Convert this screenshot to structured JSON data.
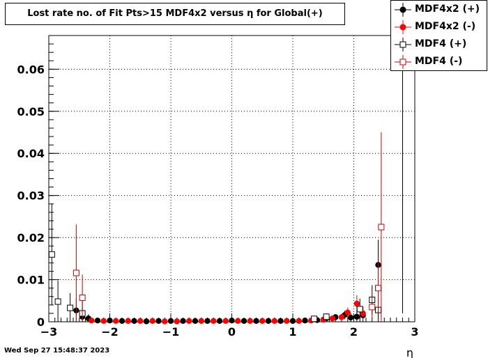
{
  "footer": {
    "timestamp": "Wed Sep 27 15:48:37 2023"
  },
  "chart_data": {
    "type": "scatter",
    "title": "Lost rate no. of Fit Pts>15 MDF4x2 versus η for Global(+)",
    "xlabel": "η",
    "ylabel": "",
    "xlim": [
      -3,
      3
    ],
    "ylim": [
      0,
      0.068
    ],
    "x_ticks": [
      "−3",
      "−2",
      "−1",
      "0",
      "1",
      "2",
      "3"
    ],
    "y_ticks": [
      "0",
      "0.01",
      "0.02",
      "0.03",
      "0.04",
      "0.05",
      "0.06"
    ],
    "grid": true,
    "legend_position": "top-right",
    "series": [
      {
        "name": "MDF4x2 (+)",
        "marker": "filled-circle",
        "color": "#000000",
        "points": [
          {
            "x": -2.55,
            "y": 0.0027,
            "err": 0.003
          },
          {
            "x": -2.45,
            "y": 0.0012,
            "err": 0.002
          },
          {
            "x": -2.35,
            "y": 0.0008,
            "err": 0.001
          },
          {
            "x": -2.2,
            "y": 0.0003,
            "err": 0.0004
          },
          {
            "x": -2.0,
            "y": 0.0003,
            "err": 0.0003
          },
          {
            "x": -1.8,
            "y": 0.0002,
            "err": 0.0002
          },
          {
            "x": -1.6,
            "y": 0.0002,
            "err": 0.0002
          },
          {
            "x": -1.4,
            "y": 0.0001,
            "err": 0.0002
          },
          {
            "x": -1.2,
            "y": 0.0002,
            "err": 0.0002
          },
          {
            "x": -1.0,
            "y": 0.0002,
            "err": 0.0002
          },
          {
            "x": -0.8,
            "y": 0.0002,
            "err": 0.0002
          },
          {
            "x": -0.6,
            "y": 0.0002,
            "err": 0.0002
          },
          {
            "x": -0.4,
            "y": 0.0002,
            "err": 0.0002
          },
          {
            "x": -0.2,
            "y": 0.0002,
            "err": 0.0002
          },
          {
            "x": 0.0,
            "y": 0.0003,
            "err": 0.0002
          },
          {
            "x": 0.2,
            "y": 0.0002,
            "err": 0.0002
          },
          {
            "x": 0.4,
            "y": 0.0002,
            "err": 0.0002
          },
          {
            "x": 0.6,
            "y": 0.0002,
            "err": 0.0002
          },
          {
            "x": 0.8,
            "y": 0.0002,
            "err": 0.0002
          },
          {
            "x": 1.0,
            "y": 0.0002,
            "err": 0.0002
          },
          {
            "x": 1.2,
            "y": 0.0003,
            "err": 0.0002
          },
          {
            "x": 1.4,
            "y": 0.0004,
            "err": 0.0003
          },
          {
            "x": 1.55,
            "y": 0.0008,
            "err": 0.0005
          },
          {
            "x": 1.7,
            "y": 0.0011,
            "err": 0.0007
          },
          {
            "x": 1.85,
            "y": 0.0016,
            "err": 0.001
          },
          {
            "x": 1.95,
            "y": 0.001,
            "err": 0.001
          },
          {
            "x": 2.05,
            "y": 0.0012,
            "err": 0.0015
          },
          {
            "x": 2.15,
            "y": 0.0015,
            "err": 0.002
          },
          {
            "x": 2.4,
            "y": 0.0135,
            "err": 0.006
          }
        ]
      },
      {
        "name": "MDF4x2 (-)",
        "marker": "filled-circle",
        "color": "#ff0000",
        "points": [
          {
            "x": -2.3,
            "y": 0.0003,
            "err": 0.0003
          },
          {
            "x": -2.1,
            "y": 0.0002,
            "err": 0.0002
          },
          {
            "x": -1.9,
            "y": 0.0002,
            "err": 0.0002
          },
          {
            "x": -1.7,
            "y": 0.0002,
            "err": 0.0002
          },
          {
            "x": -1.5,
            "y": 0.0002,
            "err": 0.0002
          },
          {
            "x": -1.3,
            "y": 0.0002,
            "err": 0.0002
          },
          {
            "x": -1.1,
            "y": 0.0001,
            "err": 0.0002
          },
          {
            "x": -0.9,
            "y": 0.0001,
            "err": 0.0002
          },
          {
            "x": -0.7,
            "y": 0.0002,
            "err": 0.0002
          },
          {
            "x": -0.5,
            "y": 0.0002,
            "err": 0.0002
          },
          {
            "x": -0.3,
            "y": 0.0002,
            "err": 0.0002
          },
          {
            "x": -0.1,
            "y": 0.0002,
            "err": 0.0002
          },
          {
            "x": 0.1,
            "y": 0.0002,
            "err": 0.0002
          },
          {
            "x": 0.3,
            "y": 0.0002,
            "err": 0.0002
          },
          {
            "x": 0.5,
            "y": 0.0002,
            "err": 0.0002
          },
          {
            "x": 0.7,
            "y": 0.0002,
            "err": 0.0002
          },
          {
            "x": 0.9,
            "y": 0.0002,
            "err": 0.0002
          },
          {
            "x": 1.1,
            "y": 0.0002,
            "err": 0.0002
          },
          {
            "x": 1.3,
            "y": 0.0003,
            "err": 0.0003
          },
          {
            "x": 1.5,
            "y": 0.0005,
            "err": 0.0003
          },
          {
            "x": 1.65,
            "y": 0.0008,
            "err": 0.0005
          },
          {
            "x": 1.8,
            "y": 0.0011,
            "err": 0.0008
          },
          {
            "x": 1.9,
            "y": 0.0022,
            "err": 0.0012
          },
          {
            "x": 2.05,
            "y": 0.0043,
            "err": 0.002
          },
          {
            "x": 2.15,
            "y": 0.002,
            "err": 0.0015
          }
        ]
      },
      {
        "name": "MDF4 (+)",
        "marker": "open-square",
        "color": "#000000",
        "points": [
          {
            "x": -2.95,
            "y": 0.016,
            "err": 0.012
          },
          {
            "x": -2.85,
            "y": 0.0048,
            "err": 0.005
          },
          {
            "x": -2.65,
            "y": 0.0033,
            "err": 0.0035
          },
          {
            "x": -2.45,
            "y": 0.002,
            "err": 0.003
          },
          {
            "x": 1.35,
            "y": 0.0007,
            "err": 0.0005
          },
          {
            "x": 1.55,
            "y": 0.0012,
            "err": 0.0008
          },
          {
            "x": 2.1,
            "y": 0.003,
            "err": 0.0025
          },
          {
            "x": 2.3,
            "y": 0.0052,
            "err": 0.0035
          },
          {
            "x": 2.4,
            "y": 0.0028,
            "err": 0.003
          }
        ]
      },
      {
        "name": "MDF4 (-)",
        "marker": "open-square",
        "color": "#cc0000",
        "points": [
          {
            "x": -2.55,
            "y": 0.0116,
            "err": 0.0115
          },
          {
            "x": -2.45,
            "y": 0.0057,
            "err": 0.0055
          },
          {
            "x": 2.3,
            "y": 0.0035,
            "err": 0.003
          },
          {
            "x": 2.4,
            "y": 0.008,
            "err": 0.006
          },
          {
            "x": 2.45,
            "y": 0.0225,
            "err": 0.0225
          }
        ]
      }
    ]
  }
}
